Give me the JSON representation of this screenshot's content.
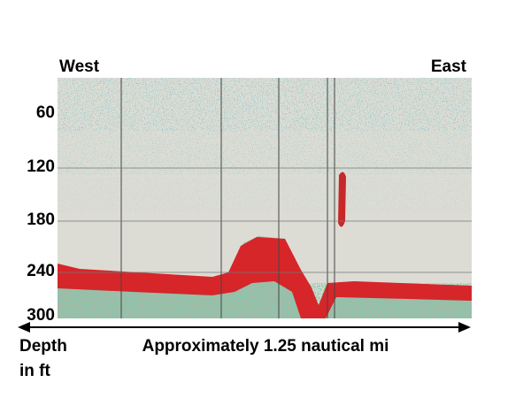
{
  "labels": {
    "west": "West",
    "east": "East",
    "depth": "Depth",
    "depth_unit": "in ft",
    "distance": "Approximately 1.25 nautical mi"
  },
  "depth_ticks": [
    60,
    120,
    180,
    240,
    300
  ]
}
